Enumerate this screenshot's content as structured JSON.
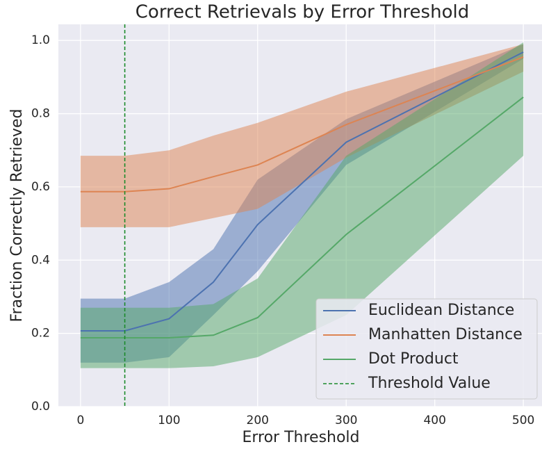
{
  "chart_data": {
    "type": "line",
    "title": "Correct Retrievals by Error Threshold",
    "xlabel": "Error Threshold",
    "ylabel": "Fraction Correctly Retrieved",
    "x": [
      0,
      50,
      100,
      150,
      200,
      300,
      500
    ],
    "series": [
      {
        "name": "Euclidean Distance",
        "color": "#4c72b0",
        "values": [
          0.207,
          0.207,
          0.24,
          0.34,
          0.497,
          0.722,
          0.968
        ],
        "lower": [
          0.12,
          0.12,
          0.135,
          0.25,
          0.37,
          0.66,
          0.95
        ],
        "upper": [
          0.295,
          0.295,
          0.34,
          0.43,
          0.62,
          0.785,
          0.99
        ]
      },
      {
        "name": "Manhatten Distance",
        "color": "#dd8452",
        "values": [
          0.587,
          0.587,
          0.595,
          0.628,
          0.66,
          0.77,
          0.955
        ],
        "lower": [
          0.49,
          0.49,
          0.49,
          0.515,
          0.54,
          0.68,
          0.915
        ],
        "upper": [
          0.685,
          0.685,
          0.7,
          0.74,
          0.775,
          0.86,
          0.99
        ]
      },
      {
        "name": "Dot Product",
        "color": "#55a868",
        "values": [
          0.188,
          0.188,
          0.188,
          0.195,
          0.243,
          0.47,
          0.845
        ],
        "lower": [
          0.105,
          0.105,
          0.105,
          0.11,
          0.135,
          0.25,
          0.685
        ],
        "upper": [
          0.27,
          0.27,
          0.27,
          0.28,
          0.35,
          0.685,
          0.995
        ]
      }
    ],
    "threshold": {
      "name": "Threshold Value",
      "x": 50,
      "color": "#1a8a2a"
    },
    "xlim": [
      -25,
      525
    ],
    "xticks": [
      0,
      100,
      200,
      300,
      400,
      500
    ],
    "ylim": [
      0,
      1.044
    ],
    "yticks": [
      {
        "value": 0,
        "label": "0.0"
      },
      0.2,
      0.4,
      0.6,
      0.8,
      {
        "value": 1,
        "label": "1.0"
      }
    ],
    "grid": true,
    "legend": "lower right"
  }
}
